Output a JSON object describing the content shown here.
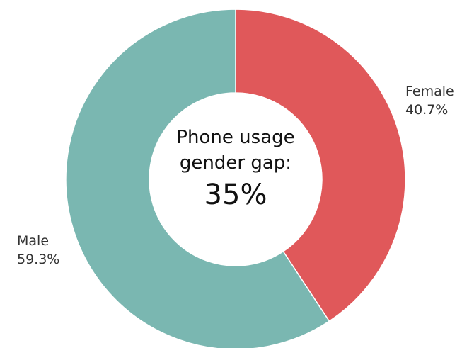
{
  "chart_data": {
    "type": "pie",
    "style": "donut",
    "start_angle_deg": 0,
    "direction": "clockwise",
    "slices": [
      {
        "label": "Female",
        "value_label": "40.7%",
        "value": 40.7,
        "color": "#e0585a"
      },
      {
        "label": "Male",
        "value_label": "59.3%",
        "value": 59.3,
        "color": "#7ab7b1"
      }
    ],
    "center": {
      "line1": "Phone usage",
      "line2": "gender gap:",
      "value": "35%"
    },
    "legend": "none"
  }
}
